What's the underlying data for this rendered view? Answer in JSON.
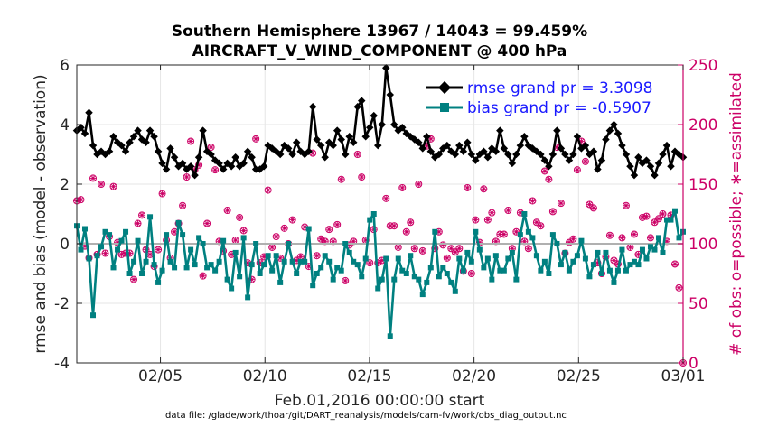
{
  "chart_data": {
    "type": "line",
    "title": "Southern Hemisphere 13967 / 14043 = 99.459%",
    "subtitle": "AIRCRAFT_V_WIND_COMPONENT @ 400 hPa",
    "ylabel": "rmse and bias (model - observation)",
    "y2label": "# of obs: o=possible; ∗=assimilated",
    "xlabel": "Feb.01,2016 00:00:00 start",
    "footnote": "data file: /glade/work/thoar/git/DART_reanalysis/models/cam-fv/work/obs_diag_output.nc",
    "xlim": [
      1,
      30
    ],
    "ylim": [
      -4,
      6
    ],
    "y2lim": [
      0,
      250
    ],
    "grid": true,
    "legend_position": "top-right",
    "yticks": [
      -4,
      -2,
      0,
      2,
      4,
      6
    ],
    "yticks_labels": [
      "-4",
      "-2",
      "0",
      "2",
      "4",
      "6"
    ],
    "y2ticks": [
      0,
      50,
      100,
      150,
      200,
      250
    ],
    "y2ticks_labels": [
      "0",
      "50",
      "100",
      "150",
      "200",
      "250"
    ],
    "xticks": [
      5,
      10,
      15,
      20,
      25,
      30
    ],
    "xticks_labels": [
      "02/05",
      "02/10",
      "02/15",
      "02/20",
      "02/25",
      "03/01"
    ],
    "series": [
      {
        "name": "rmse grand pr = 3.3098",
        "color": "#000000",
        "marker": "diamond",
        "y": [
          3.8,
          3.9,
          3.7,
          4.4,
          3.3,
          3.0,
          3.1,
          3.0,
          3.1,
          3.6,
          3.4,
          3.3,
          3.1,
          3.4,
          3.6,
          3.8,
          3.5,
          3.4,
          3.8,
          3.6,
          3.1,
          2.7,
          2.5,
          3.2,
          2.9,
          2.6,
          2.7,
          2.5,
          2.6,
          2.3,
          2.9,
          3.8,
          3.1,
          3.0,
          2.8,
          2.7,
          2.5,
          2.7,
          2.6,
          2.9,
          2.6,
          2.7,
          3.1,
          2.9,
          2.5,
          2.5,
          2.6,
          3.3,
          3.2,
          3.1,
          3.0,
          3.3,
          3.2,
          3.0,
          3.4,
          3.1,
          3.0,
          3.1,
          4.6,
          3.5,
          3.3,
          2.9,
          3.4,
          3.3,
          3.8,
          3.5,
          3.0,
          3.6,
          3.4,
          4.6,
          4.8,
          3.6,
          3.9,
          4.3,
          3.3,
          4.0,
          5.9,
          5.0,
          4.0,
          3.8,
          3.9,
          3.7,
          3.6,
          3.5,
          3.4,
          3.2,
          3.6,
          3.1,
          2.9,
          3.0,
          3.2,
          3.3,
          3.1,
          3.0,
          3.3,
          3.1,
          3.4,
          3.0,
          2.8,
          3.0,
          3.1,
          2.9,
          3.2,
          3.1,
          3.8,
          3.2,
          3.0,
          2.7,
          3.0,
          3.3,
          3.6,
          3.3,
          3.2,
          3.1,
          3.0,
          2.8,
          2.6,
          3.0,
          3.8,
          3.2,
          3.0,
          2.8,
          3.0,
          3.6,
          3.2,
          3.3,
          3.0,
          3.1,
          2.5,
          2.8,
          3.5,
          3.8,
          4.0,
          3.7,
          3.3,
          3.0,
          2.6,
          2.3,
          2.9,
          2.7,
          2.8,
          2.6,
          2.3,
          2.7,
          3.0,
          3.3,
          2.6,
          3.1,
          3.0,
          2.9
        ]
      },
      {
        "name": "bias grand pr = -0.5907",
        "color": "#008080",
        "marker": "square",
        "y": [
          0.6,
          -0.2,
          0.5,
          -0.5,
          -2.4,
          -0.4,
          -0.1,
          0.4,
          0.3,
          -0.8,
          -0.2,
          0.1,
          0.4,
          -1.0,
          -0.6,
          0.1,
          -1.0,
          -0.6,
          0.9,
          -0.7,
          -1.3,
          -0.9,
          0.3,
          -0.6,
          -0.8,
          0.7,
          0.3,
          -0.8,
          -0.2,
          -0.7,
          0.2,
          0.0,
          -0.8,
          -0.7,
          -0.9,
          -0.6,
          0.1,
          -1.2,
          -1.5,
          -0.3,
          -1.1,
          0.2,
          -1.8,
          -0.7,
          0.0,
          -1.0,
          -0.7,
          -0.4,
          -0.9,
          -0.4,
          -1.3,
          -0.6,
          0.0,
          -0.6,
          -1.0,
          -0.6,
          -0.6,
          0.5,
          -1.4,
          -1.0,
          -0.8,
          -0.4,
          -0.6,
          -1.2,
          -0.8,
          -0.9,
          0.0,
          -0.3,
          -0.6,
          -0.7,
          -1.1,
          -0.5,
          0.8,
          1.0,
          -1.5,
          -1.2,
          -0.5,
          -3.1,
          -1.2,
          -0.5,
          -0.9,
          -1.0,
          -0.4,
          -1.1,
          -1.2,
          -1.7,
          -1.3,
          -0.8,
          0.4,
          -1.1,
          -0.8,
          -1.0,
          -1.3,
          -1.6,
          -0.5,
          -0.9,
          -0.3,
          -0.6,
          0.4,
          -0.2,
          -0.8,
          -0.5,
          -1.2,
          -0.4,
          -0.9,
          -0.9,
          -0.5,
          -0.3,
          -1.2,
          0.3,
          1.0,
          0.4,
          0.2,
          -0.4,
          -0.9,
          -0.6,
          -1.0,
          0.3,
          0.0,
          -0.7,
          -0.3,
          -0.9,
          -0.6,
          -0.4,
          0.1,
          -0.5,
          -1.1,
          -0.7,
          -0.3,
          -1.0,
          -0.3,
          -0.9,
          -1.3,
          -0.9,
          -0.2,
          -0.9,
          -0.7,
          -0.6,
          -0.7,
          -0.2,
          -0.5,
          -0.1,
          -0.2,
          0.2,
          -0.3,
          0.8,
          0.8,
          1.1,
          0.2,
          0.4
        ]
      }
    ],
    "obs_possible": [
      136,
      137,
      98,
      88,
      155,
      91,
      150,
      92,
      106,
      148,
      101,
      91,
      92,
      92,
      70,
      117,
      124,
      95,
      91,
      81,
      95,
      142,
      103,
      88,
      110,
      117,
      132,
      156,
      186,
      162,
      166,
      73,
      117,
      181,
      162,
      102,
      94,
      128,
      91,
      103,
      122,
      111,
      84,
      70,
      188,
      84,
      89,
      145,
      97,
      106,
      88,
      113,
      100,
      120,
      86,
      89,
      114,
      81,
      176,
      90,
      104,
      102,
      112,
      102,
      116,
      154,
      69,
      99,
      102,
      175,
      156,
      103,
      84,
      112,
      84,
      86,
      138,
      115,
      115,
      97,
      147,
      110,
      118,
      96,
      150,
      94,
      182,
      188,
      96,
      110,
      99,
      88,
      96,
      93,
      96,
      77,
      147,
      75,
      120,
      101,
      146,
      120,
      126,
      102,
      108,
      108,
      128,
      96,
      110,
      126,
      102,
      96,
      136,
      118,
      115,
      161,
      154,
      127,
      181,
      134,
      92,
      101,
      104,
      162,
      186,
      169,
      133,
      130,
      84,
      75,
      89,
      107,
      86,
      83,
      105,
      132,
      97,
      108,
      91,
      122,
      123,
      105,
      118,
      121,
      125,
      102,
      124,
      83,
      63,
      0
    ],
    "obs_assimilated": [
      136,
      137,
      98,
      88,
      155,
      91,
      150,
      92,
      106,
      148,
      101,
      91,
      92,
      92,
      70,
      117,
      124,
      95,
      91,
      81,
      95,
      142,
      103,
      88,
      110,
      117,
      132,
      156,
      186,
      162,
      166,
      73,
      117,
      181,
      162,
      102,
      94,
      128,
      91,
      103,
      122,
      111,
      84,
      70,
      188,
      84,
      89,
      145,
      97,
      106,
      88,
      113,
      100,
      120,
      86,
      89,
      114,
      81,
      176,
      90,
      104,
      102,
      112,
      102,
      116,
      154,
      69,
      99,
      102,
      175,
      156,
      103,
      84,
      112,
      84,
      86,
      138,
      115,
      115,
      97,
      147,
      110,
      118,
      96,
      150,
      94,
      182,
      188,
      96,
      110,
      99,
      88,
      96,
      93,
      96,
      77,
      147,
      75,
      120,
      101,
      146,
      120,
      126,
      102,
      108,
      108,
      128,
      96,
      110,
      126,
      102,
      96,
      136,
      118,
      115,
      161,
      154,
      127,
      181,
      134,
      92,
      101,
      104,
      162,
      186,
      169,
      133,
      130,
      84,
      75,
      89,
      107,
      86,
      83,
      105,
      132,
      97,
      108,
      91,
      122,
      123,
      105,
      118,
      121,
      125,
      102,
      124,
      83,
      63,
      0
    ],
    "obs_color": "#cc0066",
    "zero_line_color": "#b0b0b0"
  }
}
